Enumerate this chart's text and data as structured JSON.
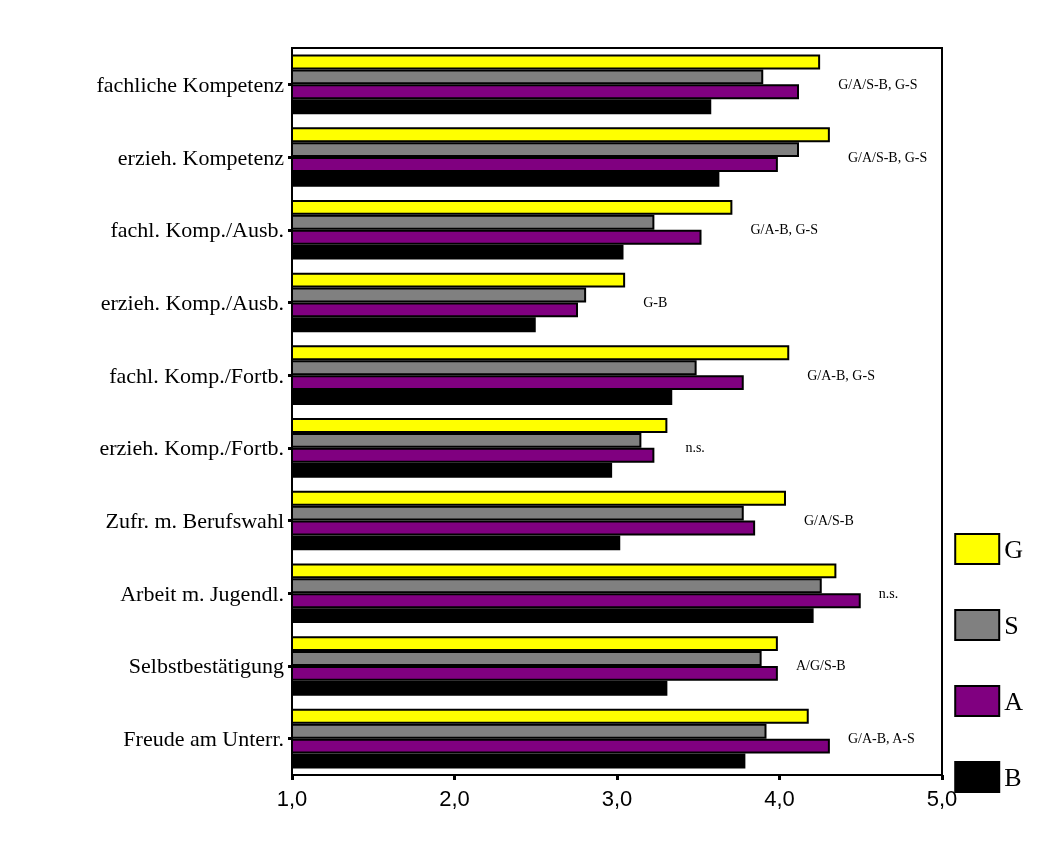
{
  "chart_data": {
    "type": "bar",
    "orientation": "horizontal",
    "categories": [
      "fachliche Kompetenz",
      "erzieh. Kompetenz",
      "fachl. Komp./Ausb.",
      "erzieh. Komp./Ausb.",
      "fachl. Komp./Fortb.",
      "erzieh. Komp./Fortb.",
      "Zufr. m. Berufswahl",
      "Arbeit m. Jugendl.",
      "Selbstbestätigung",
      "Freude am Unterr."
    ],
    "series": [
      {
        "name": "G",
        "color": "#ffff00",
        "values": [
          4.25,
          4.31,
          3.71,
          3.05,
          4.06,
          3.31,
          4.04,
          4.35,
          3.99,
          4.18
        ]
      },
      {
        "name": "S",
        "color": "#808080",
        "values": [
          3.9,
          4.12,
          3.23,
          2.81,
          3.49,
          3.15,
          3.78,
          4.26,
          3.89,
          3.92
        ]
      },
      {
        "name": "A",
        "color": "#800080",
        "values": [
          4.12,
          3.99,
          3.52,
          2.76,
          3.78,
          3.23,
          3.85,
          4.5,
          3.99,
          4.31
        ]
      },
      {
        "name": "B",
        "color": "#000000",
        "values": [
          3.58,
          3.63,
          3.04,
          2.5,
          3.34,
          2.97,
          3.02,
          4.21,
          3.31,
          3.79
        ]
      }
    ],
    "xlim": [
      1,
      5
    ],
    "xticks": [
      {
        "value": 1,
        "label": "1,0"
      },
      {
        "value": 2,
        "label": "2,0"
      },
      {
        "value": 3,
        "label": "3,0"
      },
      {
        "value": 4,
        "label": "4,0"
      },
      {
        "value": 5,
        "label": "5,0"
      }
    ],
    "annotations": [
      "G/A/S-B, G-S",
      "G/A/S-B, G-S",
      "G/A-B, G-S",
      "G-B",
      "G/A-B, G-S",
      "n.s.",
      "G/A/S-B",
      "n.s.",
      "A/G/S-B",
      "G/A-B, A-S"
    ],
    "grid": false,
    "legend": "right"
  }
}
